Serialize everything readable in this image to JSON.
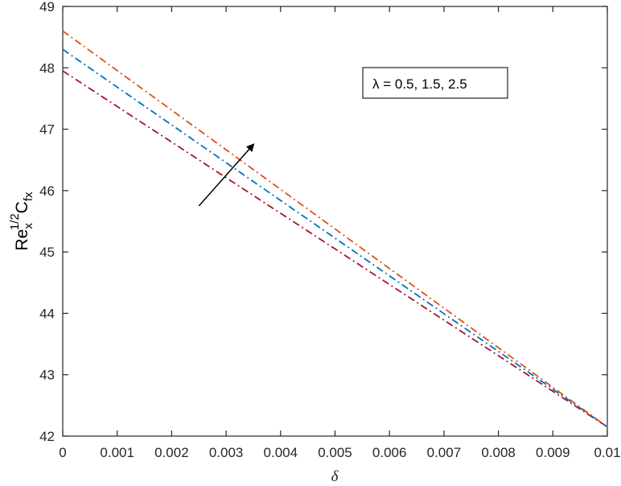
{
  "chart_data": {
    "type": "line",
    "xlabel": "δ",
    "ylabel": {
      "base": "Re",
      "sub": "x",
      "sup": "1/2",
      "base2": "C",
      "sub2": "fx"
    },
    "xlim": [
      0,
      0.01
    ],
    "ylim": [
      42,
      49
    ],
    "xticks": [
      "0",
      "0.001",
      "0.002",
      "0.003",
      "0.004",
      "0.005",
      "0.006",
      "0.007",
      "0.008",
      "0.009",
      "0.01"
    ],
    "yticks": [
      "42",
      "43",
      "44",
      "45",
      "46",
      "47",
      "48",
      "49"
    ],
    "grid": false,
    "series": [
      {
        "x": [
          0,
          0.01
        ],
        "y": [
          47.95,
          42.15
        ],
        "color": "#A2142F"
      },
      {
        "x": [
          0,
          0.01
        ],
        "y": [
          48.3,
          42.15
        ],
        "color": "#0072BD"
      },
      {
        "x": [
          0,
          0.01
        ],
        "y": [
          48.6,
          42.15
        ],
        "color": "#D95319"
      }
    ],
    "annotation": {
      "text": "λ = 0.5, 1.5, 2.5",
      "arrow_from": [
        0.0025,
        45.75
      ],
      "arrow_to": [
        0.0035,
        46.75
      ]
    }
  }
}
